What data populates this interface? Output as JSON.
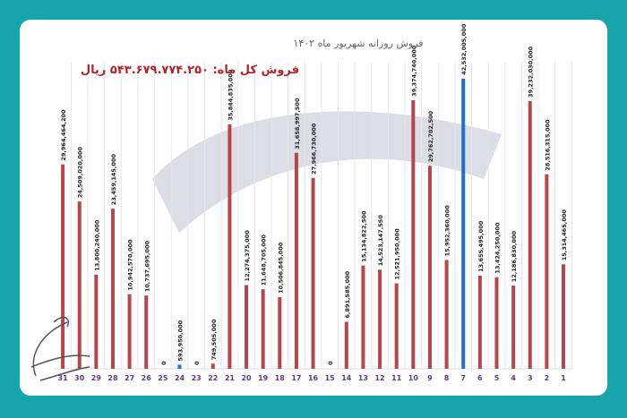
{
  "chart_data": {
    "type": "bar",
    "title": "فروش روزانه شهریور ماه ۱۴۰۲",
    "subtitle": "فروش کل ماه: ۵۴۳.۶۷۹.۷۷۴.۲۵۰ ریال",
    "xlabel": "",
    "ylabel": "",
    "ylim": [
      0,
      45000000000
    ],
    "x_order": "right-to-left",
    "grid": "vertical",
    "colors": {
      "default": "#b5474c",
      "highlight": "#1f6fd6",
      "background": "#17a5ab"
    },
    "categories": [
      "1",
      "2",
      "3",
      "4",
      "5",
      "6",
      "7",
      "8",
      "9",
      "10",
      "11",
      "12",
      "13",
      "14",
      "15",
      "16",
      "17",
      "18",
      "19",
      "20",
      "21",
      "22",
      "23",
      "24",
      "25",
      "26",
      "27",
      "28",
      "29",
      "30",
      "31"
    ],
    "values": [
      15314465000,
      28516315000,
      39232030000,
      12186830000,
      13424250000,
      13655495000,
      42532005000,
      15952360000,
      29762702500,
      39374740000,
      12521950000,
      14523147550,
      15134822500,
      6891585000,
      0,
      27966730000,
      31658997500,
      10506845000,
      11648705000,
      12274375000,
      35844835000,
      749505000,
      0,
      593950000,
      0,
      10737695000,
      10942570000,
      23459145000,
      13800240000,
      24509020000,
      29964464200
    ],
    "labels": [
      "15,314,465,000",
      "28,516,315,000",
      "39,232,030,000",
      "12,186,830,000",
      "13,424,250,000",
      "13,655,495,000",
      "42,532,005,000",
      "15,952,360,000",
      "29,762,702,500",
      "39,374,740,000",
      "12,521,950,000",
      "14,523,147,550",
      "15,134,822,500",
      "6,891,585,000",
      "0",
      "27,966,730,000",
      "31,658,997,500",
      "10,506,845,000",
      "11,648,705,000",
      "12,274,375,000",
      "35,844,835,000",
      "749,505,000",
      "0",
      "593,950,000",
      "0",
      "10,737,695,000",
      "10,942,570,000",
      "23,459,145,000",
      "13,800,240,000",
      "24,509,020,000",
      "29,964,464,200"
    ],
    "highlighted": [
      "7",
      "24"
    ]
  }
}
